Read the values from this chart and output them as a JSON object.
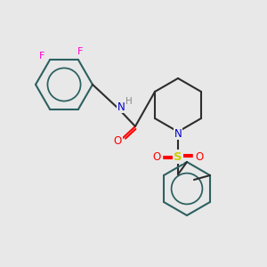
{
  "background_color": "#e8e8e8",
  "bond_color": "#2d2d2d",
  "bond_width": 1.5,
  "F_color": "#ff00cc",
  "O_color": "#ff0000",
  "N_color": "#0000cc",
  "S_color": "#cccc00",
  "H_color": "#888888",
  "ring_color": "#2d6060",
  "figsize": [
    3.0,
    3.0
  ],
  "dpi": 100,
  "xlim": [
    0,
    300
  ],
  "ylim": [
    0,
    300
  ]
}
